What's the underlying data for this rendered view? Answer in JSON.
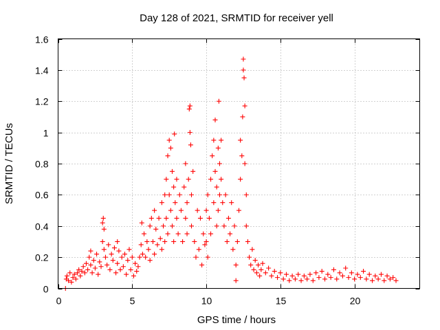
{
  "chart_data": {
    "type": "scatter",
    "title": "Day 128 of 2021, SRMTID for receiver yell",
    "xlabel": "GPS time / hours",
    "ylabel": "SRMTID / TECUs",
    "xlim": [
      0,
      24.4
    ],
    "ylim": [
      0,
      1.6
    ],
    "xticks": [
      0,
      5,
      10,
      15,
      20
    ],
    "yticks": [
      0,
      0.2,
      0.4,
      0.6,
      0.8,
      1,
      1.2,
      1.4,
      1.6
    ],
    "xtick_labels": [
      "0",
      "5",
      "10",
      "15",
      "20"
    ],
    "ytick_labels": [
      "0",
      "0.2",
      "0.4",
      "0.6",
      "0.8",
      "1",
      "1.2",
      "1.4",
      "1.6"
    ],
    "grid": true,
    "marker": "plus",
    "series": [
      {
        "name": "SRMTID",
        "color": "#ff0000",
        "points": [
          [
            0.5,
            0.0
          ],
          [
            0.55,
            0.06
          ],
          [
            0.6,
            0.08
          ],
          [
            0.7,
            0.05
          ],
          [
            0.8,
            0.1
          ],
          [
            0.9,
            0.04
          ],
          [
            1.0,
            0.07
          ],
          [
            1.1,
            0.09
          ],
          [
            1.2,
            0.06
          ],
          [
            1.3,
            0.1
          ],
          [
            1.4,
            0.12
          ],
          [
            1.5,
            0.08
          ],
          [
            1.6,
            0.11
          ],
          [
            1.7,
            0.14
          ],
          [
            1.8,
            0.1
          ],
          [
            1.9,
            0.16
          ],
          [
            2.0,
            0.12
          ],
          [
            2.1,
            0.2
          ],
          [
            2.2,
            0.15
          ],
          [
            2.2,
            0.24
          ],
          [
            2.3,
            0.1
          ],
          [
            2.4,
            0.18
          ],
          [
            2.5,
            0.13
          ],
          [
            2.6,
            0.22
          ],
          [
            2.7,
            0.09
          ],
          [
            2.8,
            0.17
          ],
          [
            2.9,
            0.14
          ],
          [
            3.0,
            0.3
          ],
          [
            3.0,
            0.42
          ],
          [
            3.05,
            0.45
          ],
          [
            3.1,
            0.38
          ],
          [
            3.1,
            0.25
          ],
          [
            3.2,
            0.2
          ],
          [
            3.3,
            0.15
          ],
          [
            3.4,
            0.28
          ],
          [
            3.5,
            0.12
          ],
          [
            3.6,
            0.22
          ],
          [
            3.7,
            0.18
          ],
          [
            3.8,
            0.26
          ],
          [
            3.9,
            0.1
          ],
          [
            4.0,
            0.3
          ],
          [
            4.0,
            0.16
          ],
          [
            4.1,
            0.24
          ],
          [
            4.2,
            0.12
          ],
          [
            4.3,
            0.2
          ],
          [
            4.4,
            0.14
          ],
          [
            4.5,
            0.22
          ],
          [
            4.6,
            0.09
          ],
          [
            4.7,
            0.18
          ],
          [
            4.8,
            0.25
          ],
          [
            4.9,
            0.12
          ],
          [
            5.0,
            0.2
          ],
          [
            5.1,
            0.08
          ],
          [
            5.2,
            0.16
          ],
          [
            5.3,
            0.11
          ],
          [
            5.4,
            0.14
          ],
          [
            5.5,
            0.2
          ],
          [
            5.6,
            0.28
          ],
          [
            5.65,
            0.42
          ],
          [
            5.7,
            0.22
          ],
          [
            5.8,
            0.35
          ],
          [
            5.9,
            0.2
          ],
          [
            6.0,
            0.3
          ],
          [
            6.1,
            0.25
          ],
          [
            6.2,
            0.4
          ],
          [
            6.2,
            0.18
          ],
          [
            6.3,
            0.45
          ],
          [
            6.4,
            0.3
          ],
          [
            6.5,
            0.5
          ],
          [
            6.5,
            0.22
          ],
          [
            6.6,
            0.38
          ],
          [
            6.7,
            0.28
          ],
          [
            6.8,
            0.45
          ],
          [
            6.9,
            0.32
          ],
          [
            7.0,
            0.55
          ],
          [
            7.0,
            0.25
          ],
          [
            7.1,
            0.4
          ],
          [
            7.2,
            0.6
          ],
          [
            7.2,
            0.3
          ],
          [
            7.3,
            0.7
          ],
          [
            7.3,
            0.45
          ],
          [
            7.4,
            0.85
          ],
          [
            7.4,
            0.35
          ],
          [
            7.5,
            0.95
          ],
          [
            7.5,
            0.6
          ],
          [
            7.6,
            0.9
          ],
          [
            7.6,
            0.5
          ],
          [
            7.7,
            0.75
          ],
          [
            7.7,
            0.4
          ],
          [
            7.8,
            0.65
          ],
          [
            7.8,
            0.3
          ],
          [
            7.85,
            0.99
          ],
          [
            7.9,
            0.55
          ],
          [
            8.0,
            0.45
          ],
          [
            8.0,
            0.7
          ],
          [
            8.1,
            0.35
          ],
          [
            8.2,
            0.6
          ],
          [
            8.3,
            0.5
          ],
          [
            8.4,
            0.3
          ],
          [
            8.5,
            0.65
          ],
          [
            8.6,
            0.45
          ],
          [
            8.6,
            0.8
          ],
          [
            8.7,
            0.55
          ],
          [
            8.7,
            0.35
          ],
          [
            8.8,
            0.7
          ],
          [
            8.85,
            1.15
          ],
          [
            8.9,
            1.17
          ],
          [
            8.9,
            1.0
          ],
          [
            8.95,
            0.92
          ],
          [
            9.0,
            0.6
          ],
          [
            9.0,
            0.4
          ],
          [
            9.1,
            0.75
          ],
          [
            9.2,
            0.3
          ],
          [
            9.3,
            0.2
          ],
          [
            9.4,
            0.5
          ],
          [
            9.5,
            0.25
          ],
          [
            9.6,
            0.45
          ],
          [
            9.7,
            0.15
          ],
          [
            9.8,
            0.35
          ],
          [
            9.9,
            0.28
          ],
          [
            10.0,
            0.5
          ],
          [
            10.0,
            0.3
          ],
          [
            10.1,
            0.6
          ],
          [
            10.1,
            0.2
          ],
          [
            10.2,
            0.45
          ],
          [
            10.3,
            0.7
          ],
          [
            10.3,
            0.35
          ],
          [
            10.4,
            0.85
          ],
          [
            10.5,
            0.55
          ],
          [
            10.5,
            0.95
          ],
          [
            10.6,
            0.75
          ],
          [
            10.6,
            1.08
          ],
          [
            10.7,
            0.65
          ],
          [
            10.7,
            0.4
          ],
          [
            10.8,
            0.9
          ],
          [
            10.8,
            0.5
          ],
          [
            10.85,
            1.2
          ],
          [
            10.9,
            0.8
          ],
          [
            10.9,
            0.6
          ],
          [
            11.0,
            0.7
          ],
          [
            11.0,
            0.95
          ],
          [
            11.1,
            0.55
          ],
          [
            11.2,
            0.4
          ],
          [
            11.3,
            0.6
          ],
          [
            11.4,
            0.3
          ],
          [
            11.5,
            0.45
          ],
          [
            11.6,
            0.35
          ],
          [
            11.7,
            0.55
          ],
          [
            11.8,
            0.25
          ],
          [
            11.9,
            0.4
          ],
          [
            12.0,
            0.15
          ],
          [
            12.0,
            0.05
          ],
          [
            12.1,
            0.3
          ],
          [
            12.2,
            0.5
          ],
          [
            12.3,
            0.7
          ],
          [
            12.3,
            0.95
          ],
          [
            12.4,
            0.85
          ],
          [
            12.45,
            1.1
          ],
          [
            12.5,
            1.4
          ],
          [
            12.5,
            1.47
          ],
          [
            12.55,
            1.35
          ],
          [
            12.6,
            1.17
          ],
          [
            12.6,
            0.8
          ],
          [
            12.7,
            0.6
          ],
          [
            12.7,
            0.4
          ],
          [
            12.8,
            0.3
          ],
          [
            12.9,
            0.2
          ],
          [
            13.0,
            0.15
          ],
          [
            13.1,
            0.25
          ],
          [
            13.2,
            0.12
          ],
          [
            13.3,
            0.18
          ],
          [
            13.4,
            0.1
          ],
          [
            13.5,
            0.15
          ],
          [
            13.6,
            0.08
          ],
          [
            13.7,
            0.12
          ],
          [
            13.8,
            0.16
          ],
          [
            14.0,
            0.1
          ],
          [
            14.2,
            0.13
          ],
          [
            14.4,
            0.08
          ],
          [
            14.6,
            0.11
          ],
          [
            14.8,
            0.07
          ],
          [
            15.0,
            0.1
          ],
          [
            15.2,
            0.06
          ],
          [
            15.4,
            0.09
          ],
          [
            15.6,
            0.05
          ],
          [
            15.8,
            0.08
          ],
          [
            16.0,
            0.06
          ],
          [
            16.2,
            0.09
          ],
          [
            16.4,
            0.05
          ],
          [
            16.6,
            0.08
          ],
          [
            16.8,
            0.06
          ],
          [
            17.0,
            0.09
          ],
          [
            17.2,
            0.05
          ],
          [
            17.4,
            0.1
          ],
          [
            17.6,
            0.07
          ],
          [
            17.8,
            0.11
          ],
          [
            18.0,
            0.06
          ],
          [
            18.2,
            0.09
          ],
          [
            18.4,
            0.07
          ],
          [
            18.6,
            0.12
          ],
          [
            18.8,
            0.06
          ],
          [
            19.0,
            0.1
          ],
          [
            19.2,
            0.08
          ],
          [
            19.4,
            0.13
          ],
          [
            19.6,
            0.07
          ],
          [
            19.8,
            0.1
          ],
          [
            20.0,
            0.06
          ],
          [
            20.2,
            0.09
          ],
          [
            20.4,
            0.07
          ],
          [
            20.6,
            0.11
          ],
          [
            20.8,
            0.06
          ],
          [
            21.0,
            0.09
          ],
          [
            21.2,
            0.05
          ],
          [
            21.4,
            0.08
          ],
          [
            21.6,
            0.06
          ],
          [
            21.8,
            0.09
          ],
          [
            22.0,
            0.05
          ],
          [
            22.2,
            0.08
          ],
          [
            22.4,
            0.06
          ],
          [
            22.6,
            0.07
          ],
          [
            22.8,
            0.05
          ]
        ]
      }
    ]
  }
}
